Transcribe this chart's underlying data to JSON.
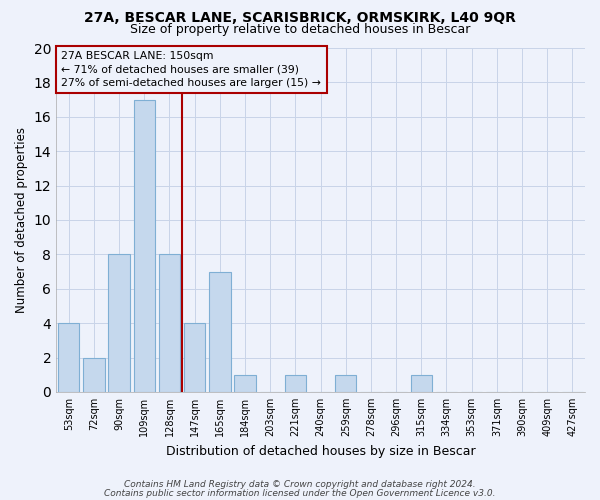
{
  "title1": "27A, BESCAR LANE, SCARISBRICK, ORMSKIRK, L40 9QR",
  "title2": "Size of property relative to detached houses in Bescar",
  "xlabel": "Distribution of detached houses by size in Bescar",
  "ylabel": "Number of detached properties",
  "bar_labels": [
    "53sqm",
    "72sqm",
    "90sqm",
    "109sqm",
    "128sqm",
    "147sqm",
    "165sqm",
    "184sqm",
    "203sqm",
    "221sqm",
    "240sqm",
    "259sqm",
    "278sqm",
    "296sqm",
    "315sqm",
    "334sqm",
    "353sqm",
    "371sqm",
    "390sqm",
    "409sqm",
    "427sqm"
  ],
  "bar_values": [
    4,
    2,
    8,
    17,
    8,
    4,
    7,
    1,
    0,
    1,
    0,
    1,
    0,
    0,
    1,
    0,
    0,
    0,
    0,
    0,
    0
  ],
  "bar_color": "#c5d8ed",
  "bar_edge_color": "#7fafd4",
  "grid_color": "#c8d4e8",
  "annotation_box_edge": "#aa0000",
  "annotation_line_color": "#aa0000",
  "property_size": 150,
  "red_line_x": 4.5,
  "annotation_title": "27A BESCAR LANE: 150sqm",
  "annotation_line1": "← 71% of detached houses are smaller (39)",
  "annotation_line2": "27% of semi-detached houses are larger (15) →",
  "ylim": [
    0,
    20
  ],
  "yticks": [
    0,
    2,
    4,
    6,
    8,
    10,
    12,
    14,
    16,
    18,
    20
  ],
  "footer1": "Contains HM Land Registry data © Crown copyright and database right 2024.",
  "footer2": "Contains public sector information licensed under the Open Government Licence v3.0.",
  "bg_color": "#eef2fb",
  "plot_bg_color": "#eef2fb"
}
